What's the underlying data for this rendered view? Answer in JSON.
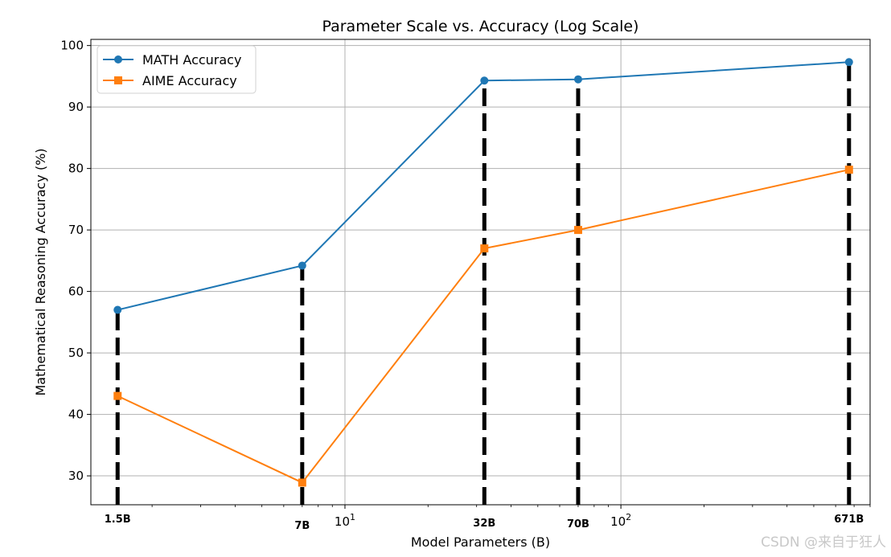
{
  "chart_data": {
    "type": "line",
    "title": "Parameter Scale vs. Accuracy (Log Scale)",
    "xlabel": "Model Parameters (B)",
    "ylabel": "Mathematical Reasoning Accuracy (%)",
    "x_scale": "log",
    "x": [
      1.5,
      7,
      32,
      70,
      671
    ],
    "category_labels": [
      "1.5B",
      "7B",
      "32B",
      "70B",
      "671B"
    ],
    "xlim": [
      1.2,
      800
    ],
    "ylim": [
      25.3,
      101
    ],
    "yticks": [
      30,
      40,
      50,
      60,
      70,
      80,
      90,
      100
    ],
    "xticks": [
      {
        "value": 10,
        "base": "10",
        "exp": "1"
      },
      {
        "value": 100,
        "base": "10",
        "exp": "2"
      }
    ],
    "grid": true,
    "legend_position": "top-left",
    "series": [
      {
        "name": "MATH Accuracy",
        "values": [
          57.0,
          64.2,
          94.3,
          94.5,
          97.3
        ],
        "color": "#1f77b4",
        "marker": "circle"
      },
      {
        "name": "AIME Accuracy",
        "values": [
          43.0,
          28.9,
          67.0,
          70.0,
          79.8
        ],
        "color": "#ff7f0e",
        "marker": "square"
      }
    ],
    "dashed_lines": {
      "color": "#000000",
      "from_y": 25.3,
      "to": "MATH Accuracy"
    }
  },
  "watermark": "CSDN @来自于狂人"
}
